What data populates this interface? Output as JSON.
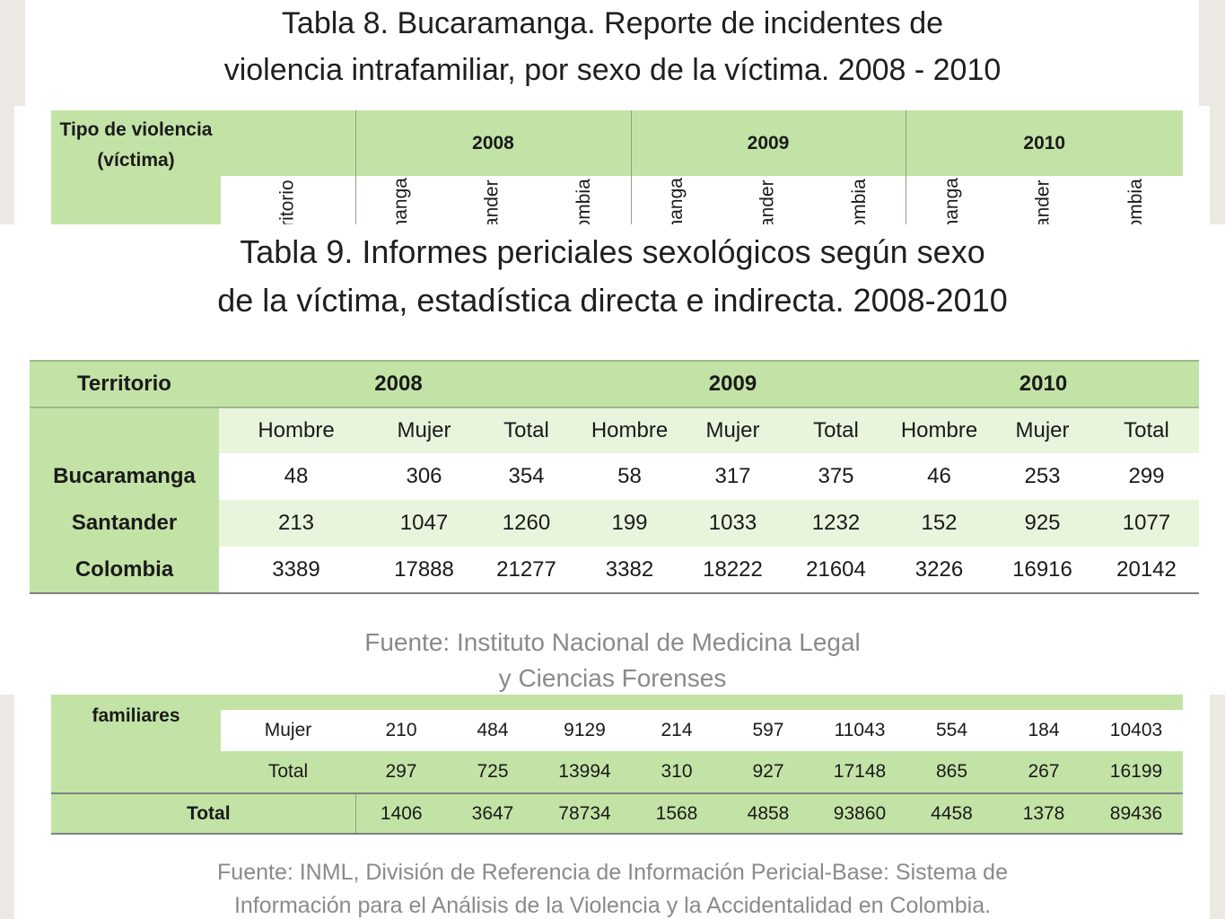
{
  "table8": {
    "title_line1": "Tabla 8. Bucaramanga.  Reporte de incidentes de",
    "title_line2": "violencia intrafamiliar,  por sexo de la víctima.  2008 - 2010",
    "corner_line1": "Tipo de violencia",
    "corner_line2": "(víctima)",
    "years": [
      "2008",
      "2009",
      "2010"
    ],
    "sub_headers": [
      "erritorio",
      "amanga",
      "ntander",
      "olombia",
      "amanga",
      "ntander",
      "olombia",
      "amanga",
      "ntander",
      "olombia"
    ]
  },
  "table9": {
    "title_line1": "Tabla 9. Informes periciales sexológicos según sexo",
    "title_line2": "de la víctima, estadística directa e indirecta. 2008-2010",
    "territorio_label": "Territorio",
    "years": [
      "2008",
      "2009",
      "2010"
    ],
    "subcols": [
      "Hombre",
      "Mujer",
      "Total",
      "Hombre",
      "Mujer",
      "Total",
      "Hombre",
      "Mujer",
      "Total"
    ],
    "rows": [
      {
        "name": "Bucaramanga",
        "values": [
          "48",
          "306",
          "354",
          "58",
          "317",
          "375",
          "46",
          "253",
          "299"
        ]
      },
      {
        "name": "Santander",
        "values": [
          "213",
          "1047",
          "1260",
          "199",
          "1033",
          "1232",
          "152",
          "925",
          "1077"
        ]
      },
      {
        "name": "Colombia",
        "values": [
          "3389",
          "17888",
          "21277",
          "3382",
          "18222",
          "21604",
          "3226",
          "16916",
          "20142"
        ]
      }
    ],
    "source_line1": "Fuente: Instituto Nacional de Medicina Legal",
    "source_line2": "y Ciencias Forenses"
  },
  "table8_bottom": {
    "group_label": "familiares",
    "rows": [
      {
        "label": "Mujer",
        "values": [
          "210",
          "484",
          "9129",
          "214",
          "597",
          "11043",
          "554",
          "184",
          "10403"
        ]
      },
      {
        "label": "Total",
        "values": [
          "297",
          "725",
          "13994",
          "310",
          "927",
          "17148",
          "865",
          "267",
          "16199"
        ]
      }
    ],
    "total_row": {
      "label": "Total",
      "values": [
        "1406",
        "3647",
        "78734",
        "1568",
        "4858",
        "93860",
        "4458",
        "1378",
        "89436"
      ]
    },
    "source_line1": "Fuente: INML, División de Referencia de Información Pericial-Base: Sistema de",
    "source_line2": "Información para el Análisis de la Violencia y la Accidentalidad en Colombia."
  },
  "colors": {
    "header_green": "#c3e3a6",
    "light_green": "#e8f5dc",
    "source_gray": "#8a8a8a"
  }
}
